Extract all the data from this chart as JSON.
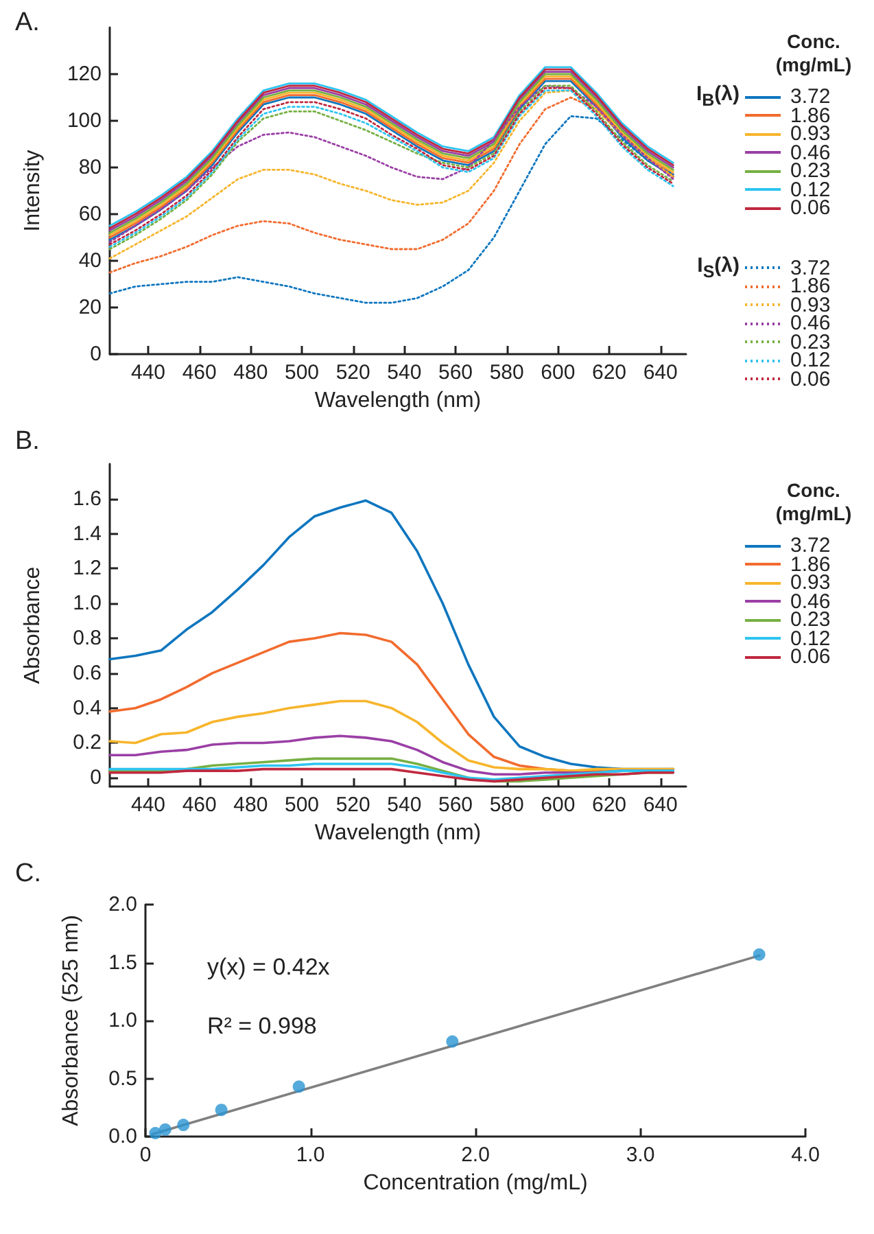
{
  "chart_data": [
    {
      "type": "line",
      "title": "A.",
      "xlabel": "Wavelength (nm)",
      "ylabel": "Intensity",
      "legend": "right",
      "legend_title": "Conc. (mg/mL)",
      "annotations": [
        "I$_{B}$(λ)",
        "I$_{S}$(λ)"
      ],
      "xlim": [
        425,
        650
      ],
      "xticks": [
        440,
        460,
        480,
        500,
        520,
        540,
        560,
        580,
        600,
        620,
        640
      ],
      "ylim": [
        0,
        140
      ],
      "yticks": [
        0,
        20,
        40,
        60,
        80,
        100,
        120
      ],
      "grid": false,
      "x": [
        425,
        435,
        445,
        455,
        465,
        475,
        485,
        495,
        505,
        515,
        525,
        535,
        545,
        555,
        565,
        575,
        585,
        595,
        605,
        615,
        625,
        635,
        645
      ],
      "series": [
        {
          "name": "3.72",
          "color": "#0e76bf",
          "line_style": "solid",
          "values": [
            49,
            55,
            62,
            70,
            81,
            95,
            107,
            110,
            110,
            107,
            103,
            96,
            89,
            83,
            81,
            87,
            105,
            117,
            117,
            106,
            93,
            83,
            76
          ]
        },
        {
          "name": "1.86",
          "color": "#f26b2e",
          "line_style": "solid",
          "values": [
            50,
            56,
            63,
            71,
            82,
            96,
            108,
            111,
            111,
            108,
            104,
            97,
            90,
            84,
            82,
            88,
            106,
            118,
            118,
            107,
            94,
            84,
            77
          ]
        },
        {
          "name": "0.93",
          "color": "#f7b52c",
          "line_style": "solid",
          "values": [
            51,
            57,
            64,
            72,
            83,
            97,
            109,
            112,
            112,
            109,
            105,
            98,
            91,
            85,
            83,
            89,
            107,
            119,
            119,
            108,
            95,
            85,
            78
          ]
        },
        {
          "name": "0.46",
          "color": "#9a3fa5",
          "line_style": "solid",
          "values": [
            53,
            59,
            66,
            74,
            85,
            99,
            111,
            114,
            114,
            111,
            107,
            100,
            93,
            87,
            85,
            91,
            109,
            121,
            121,
            110,
            97,
            87,
            80
          ]
        },
        {
          "name": "0.23",
          "color": "#76b043",
          "line_style": "solid",
          "values": [
            52,
            58,
            65,
            73,
            84,
            98,
            110,
            113,
            113,
            110,
            106,
            99,
            92,
            86,
            84,
            90,
            108,
            120,
            120,
            109,
            96,
            86,
            79
          ]
        },
        {
          "name": "0.12",
          "color": "#2ec4f0",
          "line_style": "solid",
          "values": [
            55,
            61,
            68,
            76,
            87,
            101,
            113,
            116,
            116,
            113,
            109,
            102,
            95,
            89,
            87,
            93,
            111,
            123,
            123,
            112,
            99,
            89,
            82
          ]
        },
        {
          "name": "0.06",
          "color": "#c0283f",
          "line_style": "solid",
          "values": [
            54,
            60,
            67,
            75,
            86,
            100,
            112,
            115,
            115,
            112,
            108,
            101,
            94,
            88,
            86,
            92,
            110,
            122,
            122,
            111,
            98,
            88,
            81
          ]
        },
        {
          "name": "3.72",
          "color": "#0e76bf",
          "line_style": "dotted",
          "values": [
            26,
            29,
            30,
            31,
            31,
            33,
            31,
            29,
            26,
            24,
            22,
            22,
            24,
            29,
            36,
            50,
            70,
            90,
            102,
            101,
            92,
            83,
            77
          ]
        },
        {
          "name": "1.86",
          "color": "#f26b2e",
          "line_style": "dotted",
          "values": [
            35,
            39,
            42,
            46,
            51,
            55,
            57,
            56,
            52,
            49,
            47,
            45,
            45,
            49,
            56,
            70,
            90,
            105,
            110,
            105,
            94,
            84,
            76
          ]
        },
        {
          "name": "0.93",
          "color": "#f7b52c",
          "line_style": "dotted",
          "values": [
            41,
            47,
            53,
            59,
            67,
            75,
            79,
            79,
            77,
            73,
            70,
            66,
            64,
            65,
            70,
            82,
            100,
            112,
            113,
            105,
            94,
            84,
            76
          ]
        },
        {
          "name": "0.46",
          "color": "#9a3fa5",
          "line_style": "dotted",
          "values": [
            48,
            55,
            62,
            70,
            80,
            89,
            94,
            95,
            93,
            89,
            85,
            80,
            76,
            75,
            80,
            92,
            106,
            115,
            114,
            106,
            94,
            84,
            75
          ]
        },
        {
          "name": "0.23",
          "color": "#76b043",
          "line_style": "dotted",
          "values": [
            45,
            51,
            58,
            66,
            77,
            91,
            101,
            104,
            104,
            100,
            96,
            91,
            86,
            82,
            80,
            86,
            104,
            115,
            115,
            104,
            91,
            81,
            74
          ]
        },
        {
          "name": "0.12",
          "color": "#2ec4f0",
          "line_style": "dotted",
          "values": [
            46,
            52,
            59,
            67,
            78,
            92,
            103,
            106,
            106,
            103,
            99,
            93,
            87,
            80,
            78,
            84,
            102,
            113,
            113,
            102,
            89,
            79,
            72
          ]
        },
        {
          "name": "0.06",
          "color": "#c0283f",
          "line_style": "dotted",
          "values": [
            47,
            53,
            60,
            68,
            79,
            93,
            105,
            108,
            108,
            105,
            101,
            94,
            88,
            81,
            79,
            85,
            103,
            114,
            114,
            103,
            90,
            80,
            73
          ]
        }
      ]
    },
    {
      "type": "line",
      "title": "B.",
      "xlabel": "Wavelength (nm)",
      "ylabel": "Absorbance",
      "legend": "right",
      "legend_title": "Conc. (mg/mL)",
      "xlim": [
        425,
        650
      ],
      "xticks": [
        440,
        460,
        480,
        500,
        520,
        540,
        560,
        580,
        600,
        620,
        640
      ],
      "ylim": [
        -0.05,
        1.8
      ],
      "yticks": [
        0,
        {
          "value": 0.2,
          "label": "0.2"
        },
        {
          "value": 0.4,
          "label": "0.4"
        },
        {
          "value": 0.6,
          "label": "0.6"
        },
        {
          "value": 0.8,
          "label": "0.8"
        },
        {
          "value": 1,
          "label": "1.0"
        },
        {
          "value": 1.2,
          "label": "1.2"
        },
        {
          "value": 1.4,
          "label": "1.4"
        },
        {
          "value": 1.6,
          "label": "1.6"
        }
      ],
      "grid": false,
      "x": [
        425,
        435,
        445,
        455,
        465,
        475,
        485,
        495,
        505,
        515,
        525,
        535,
        545,
        555,
        565,
        575,
        585,
        595,
        605,
        615,
        625,
        635,
        645
      ],
      "series": [
        {
          "name": "3.72",
          "color": "#0e76bf",
          "values": [
            0.68,
            0.7,
            0.73,
            0.85,
            0.95,
            1.08,
            1.22,
            1.38,
            1.5,
            1.55,
            1.59,
            1.52,
            1.3,
            1.0,
            0.65,
            0.35,
            0.18,
            0.12,
            0.08,
            0.06,
            0.05,
            0.05,
            0.05
          ]
        },
        {
          "name": "1.86",
          "color": "#f26b2e",
          "values": [
            0.38,
            0.4,
            0.45,
            0.52,
            0.6,
            0.66,
            0.72,
            0.78,
            0.8,
            0.83,
            0.82,
            0.78,
            0.65,
            0.45,
            0.25,
            0.12,
            0.07,
            0.05,
            0.04,
            0.04,
            0.04,
            0.04,
            0.05
          ]
        },
        {
          "name": "0.93",
          "color": "#f7b52c",
          "values": [
            0.21,
            0.2,
            0.25,
            0.26,
            0.32,
            0.35,
            0.37,
            0.4,
            0.42,
            0.44,
            0.44,
            0.4,
            0.32,
            0.2,
            0.1,
            0.06,
            0.05,
            0.05,
            0.04,
            0.05,
            0.05,
            0.05,
            0.05
          ]
        },
        {
          "name": "0.46",
          "color": "#9a3fa5",
          "values": [
            0.13,
            0.13,
            0.15,
            0.16,
            0.19,
            0.2,
            0.2,
            0.21,
            0.23,
            0.24,
            0.23,
            0.21,
            0.16,
            0.09,
            0.04,
            0.02,
            0.02,
            0.03,
            0.03,
            0.03,
            0.04,
            0.04,
            0.04
          ]
        },
        {
          "name": "0.23",
          "color": "#76b043",
          "values": [
            0.04,
            0.04,
            0.04,
            0.05,
            0.07,
            0.08,
            0.09,
            0.1,
            0.11,
            0.11,
            0.11,
            0.11,
            0.08,
            0.04,
            0.0,
            -0.02,
            -0.02,
            -0.01,
            0.0,
            0.01,
            0.02,
            0.03,
            0.03
          ]
        },
        {
          "name": "0.12",
          "color": "#2ec4f0",
          "values": [
            0.05,
            0.05,
            0.05,
            0.05,
            0.05,
            0.06,
            0.07,
            0.07,
            0.08,
            0.08,
            0.08,
            0.08,
            0.06,
            0.03,
            0.0,
            -0.01,
            0.0,
            0.01,
            0.02,
            0.03,
            0.04,
            0.04,
            0.04
          ]
        },
        {
          "name": "0.06",
          "color": "#c0283f",
          "values": [
            0.03,
            0.03,
            0.03,
            0.04,
            0.04,
            0.04,
            0.05,
            0.05,
            0.05,
            0.05,
            0.05,
            0.05,
            0.03,
            0.01,
            -0.01,
            -0.02,
            -0.01,
            0.0,
            0.01,
            0.02,
            0.02,
            0.03,
            0.03
          ]
        }
      ]
    },
    {
      "type": "scatter",
      "title": "C.",
      "xlabel": "Concentration (mg/mL)",
      "ylabel": "Absorbance (525 nm)",
      "annotations": [
        "y(x) = 0.42x",
        "R² = 0.998"
      ],
      "xlim": [
        0,
        4
      ],
      "xticks": [
        0,
        {
          "value": 1,
          "label": "1.0"
        },
        {
          "value": 2,
          "label": "2.0"
        },
        {
          "value": 3,
          "label": "3.0"
        },
        {
          "value": 4,
          "label": "4.0"
        }
      ],
      "ylim": [
        0,
        2
      ],
      "yticks": [
        {
          "value": 0,
          "label": "0.0"
        },
        {
          "value": 0.5,
          "label": "0.5"
        },
        {
          "value": 1,
          "label": "1.0"
        },
        {
          "value": 1.5,
          "label": "1.5"
        },
        {
          "value": 2,
          "label": "2.0"
        }
      ],
      "grid": false,
      "marker": "circle",
      "series": [
        {
          "color": "#2b95d3",
          "x": [
            0.06,
            0.12,
            0.23,
            0.46,
            0.93,
            1.86,
            3.72
          ],
          "values": [
            0.03,
            0.06,
            0.1,
            0.23,
            0.43,
            0.82,
            1.57
          ]
        },
        {
          "type": "line",
          "marker": "none",
          "color": "#808080",
          "x": [
            0.04,
            3.72
          ],
          "values": [
            0.02,
            1.56
          ]
        }
      ]
    }
  ]
}
